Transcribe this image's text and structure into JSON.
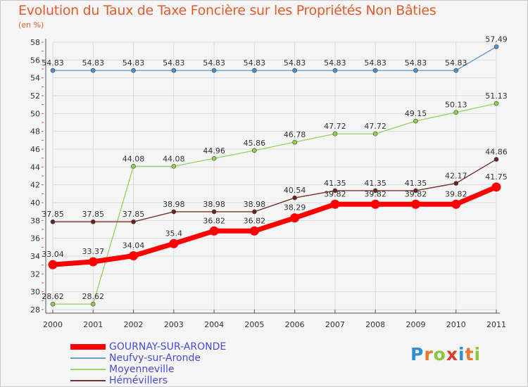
{
  "title": "Evolution du Taux de Taxe Foncière sur les Propriétés Non Bâties",
  "unit": "(en %)",
  "logo": {
    "text": "Proxiti",
    "colors": [
      "#2e8fd6",
      "#e8762c",
      "#8cc63f",
      "#e23a2a",
      "#2e8fd6",
      "#e8762c",
      "#8cc63f"
    ]
  },
  "chart_data": {
    "type": "line",
    "title": "Evolution du Taux de Taxe Foncière sur les Propriétés Non Bâties",
    "ylabel": "(en %)",
    "xlabel": "",
    "x": [
      "2000",
      "2001",
      "2002",
      "2003",
      "2004",
      "2005",
      "2006",
      "2007",
      "2008",
      "2009",
      "2010",
      "2011"
    ],
    "ylim": [
      28,
      58
    ],
    "yticks": [
      "28",
      "30",
      "32",
      "34",
      "36",
      "38",
      "40",
      "42",
      "44",
      "46",
      "48",
      "50",
      "52",
      "54",
      "56",
      "58"
    ],
    "grid": true,
    "legend": "bottom-left",
    "series": [
      {
        "name": "GOURNAY-SUR-ARONDE",
        "color": "#ff0000",
        "values": [
          33.04,
          33.37,
          34.04,
          35.4,
          36.82,
          36.82,
          38.29,
          39.82,
          39.82,
          39.82,
          39.82,
          41.75
        ],
        "labels": [
          "33.04",
          "33.37",
          "34.04",
          "35.4",
          "36.82",
          "36.82",
          "38.29",
          "39.82",
          "39.82",
          "39.82",
          "39.82",
          "41.75"
        ]
      },
      {
        "name": "Neufvy-sur-Aronde",
        "color": "#6a9fd0",
        "values": [
          54.83,
          54.83,
          54.83,
          54.83,
          54.83,
          54.83,
          54.83,
          54.83,
          54.83,
          54.83,
          54.83,
          57.49
        ],
        "labels": [
          "54.83",
          "54.83",
          "54.83",
          "54.83",
          "54.83",
          "54.83",
          "54.83",
          "54.83",
          "54.83",
          "54.83",
          "54.83",
          "57.49"
        ]
      },
      {
        "name": "Moyenneville",
        "color": "#9ad46a",
        "values": [
          28.62,
          28.62,
          44.08,
          44.08,
          44.96,
          45.86,
          46.78,
          47.72,
          47.72,
          49.15,
          50.13,
          51.13
        ],
        "labels": [
          "28.62",
          "28.62",
          "44.08",
          "44.08",
          "44.96",
          "45.86",
          "46.78",
          "47.72",
          "47.72",
          "49.15",
          "50.13",
          "51.13"
        ]
      },
      {
        "name": "Hémévillers",
        "color": "#7a3030",
        "values": [
          37.85,
          37.85,
          37.85,
          38.98,
          38.98,
          38.98,
          40.54,
          41.35,
          41.35,
          41.35,
          42.17,
          44.86
        ],
        "labels": [
          "37.85",
          "37.85",
          "37.85",
          "38.98",
          "38.98",
          "38.98",
          "40.54",
          "41.35",
          "41.35",
          "41.35",
          "42.17",
          "44.86"
        ]
      }
    ]
  }
}
